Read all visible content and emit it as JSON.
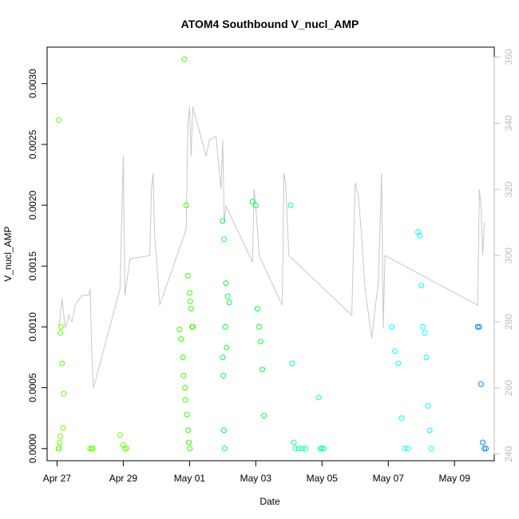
{
  "chart_data": {
    "type": "scatter",
    "title": "ATOM4 Southbound V_nucl_AMP",
    "xlabel": "Date",
    "ylabel": "V_nucl_AMP",
    "x_ticks": [
      "Apr 27",
      "Apr 29",
      "May 01",
      "May 03",
      "May 05",
      "May 07",
      "May 09"
    ],
    "y_ticks": [
      "0.0000",
      "0.0005",
      "0.0010",
      "0.0015",
      "0.0020",
      "0.0025",
      "0.0030"
    ],
    "y_ticks_right": [
      "240",
      "260",
      "280",
      "300",
      "320",
      "340",
      "360"
    ],
    "ylim": [
      -0.0001,
      0.0033
    ],
    "ylim_right": [
      238,
      363
    ],
    "grid": false,
    "legend": "none",
    "x_range_days": [
      -0.3,
      13.2
    ],
    "colors": {
      "line_series": "#c8c8c8",
      "right_axis": "#bdbdbd",
      "points": [
        "#66ff00",
        "#33ff00",
        "#00ff44",
        "#00ffaa",
        "#00ffff",
        "#0088ff"
      ]
    },
    "line_series_right_axis": [
      [
        0.05,
        278
      ],
      [
        0.15,
        287
      ],
      [
        0.25,
        278
      ],
      [
        0.35,
        282
      ],
      [
        0.45,
        280
      ],
      [
        0.55,
        285
      ],
      [
        0.75,
        288
      ],
      [
        0.95,
        288
      ],
      [
        1.0,
        290
      ],
      [
        1.05,
        270
      ],
      [
        1.1,
        260
      ],
      [
        1.9,
        290
      ],
      [
        2.0,
        330
      ],
      [
        2.05,
        288
      ],
      [
        2.2,
        299
      ],
      [
        2.8,
        300
      ],
      [
        2.85,
        320
      ],
      [
        2.9,
        325
      ],
      [
        2.95,
        305
      ],
      [
        3.0,
        300
      ],
      [
        3.1,
        285
      ],
      [
        3.9,
        308
      ],
      [
        3.95,
        340
      ],
      [
        4.0,
        345
      ],
      [
        4.05,
        330
      ],
      [
        4.1,
        345
      ],
      [
        4.5,
        330
      ],
      [
        4.6,
        335
      ],
      [
        4.8,
        336
      ],
      [
        4.95,
        320
      ],
      [
        5.0,
        335
      ],
      [
        5.05,
        310
      ],
      [
        5.1,
        315
      ],
      [
        5.9,
        298
      ],
      [
        5.95,
        320
      ],
      [
        6.0,
        315
      ],
      [
        6.1,
        300
      ],
      [
        6.8,
        285
      ],
      [
        6.85,
        325
      ],
      [
        6.9,
        322
      ],
      [
        7.0,
        300
      ],
      [
        8.9,
        282
      ],
      [
        9.0,
        322
      ],
      [
        9.1,
        318
      ],
      [
        9.2,
        305
      ],
      [
        9.3,
        290
      ],
      [
        9.5,
        275
      ],
      [
        9.7,
        292
      ],
      [
        9.8,
        325
      ],
      [
        9.85,
        278
      ],
      [
        9.9,
        300
      ],
      [
        12.7,
        285
      ],
      [
        12.75,
        320
      ],
      [
        12.8,
        315
      ],
      [
        12.85,
        300
      ],
      [
        12.9,
        310
      ]
    ],
    "series": [
      {
        "x": [
          0.05,
          0.1,
          0.12,
          0.15,
          0.2,
          0.18,
          0.1,
          0.08,
          0.06,
          0.04,
          1.0,
          1.05,
          1.08,
          1.9,
          2.0,
          2.05,
          2.1
        ],
        "y": [
          0.0027,
          0.00095,
          0.001,
          0.0007,
          0.00045,
          0.00017,
          0.0001,
          5e-05,
          0,
          0,
          0,
          0,
          0,
          0.00011,
          3e-05,
          0,
          0
        ],
        "color": "#66ff00"
      },
      {
        "x": [
          3.85,
          3.9,
          3.95,
          4.0,
          4.02,
          4.05,
          4.08,
          4.1,
          3.7,
          3.75,
          3.8,
          3.82,
          3.86,
          3.88,
          3.92,
          3.96,
          3.98,
          4.01
        ],
        "y": [
          0.0032,
          0.002,
          0.00142,
          0.00128,
          0.00121,
          0.00115,
          0.001,
          0.001,
          0.00098,
          0.0009,
          0.00075,
          0.0006,
          0.0005,
          0.0004,
          0.00028,
          0.00015,
          5e-05,
          0
        ],
        "color": "#33ff00"
      },
      {
        "x": [
          5.0,
          5.05,
          5.1,
          5.15,
          5.2,
          5.08,
          5.12,
          5.0,
          5.02,
          5.04,
          5.06,
          5.9,
          6.0,
          6.05,
          6.1,
          6.15,
          6.2,
          6.25
        ],
        "y": [
          0.00187,
          0.00172,
          0.00136,
          0.00125,
          0.0012,
          0.001,
          0.00083,
          0.00075,
          0.0006,
          0.00015,
          0,
          0.00203,
          0.002,
          0.00115,
          0.001,
          0.00088,
          0.00065,
          0.00027
        ],
        "color": "#00ff44"
      },
      {
        "x": [
          7.05,
          7.1,
          7.15,
          7.2,
          7.3,
          7.4,
          7.5,
          7.9,
          7.95,
          8.0,
          8.05
        ],
        "y": [
          0.002,
          0.0007,
          5e-05,
          0,
          0,
          0,
          0,
          0.00042,
          0,
          0,
          0
        ],
        "color": "#00ffaa"
      },
      {
        "x": [
          10.1,
          10.2,
          10.3,
          10.4,
          10.5,
          10.6,
          10.9,
          10.95,
          11.0,
          11.05,
          11.1,
          11.15,
          11.2,
          11.25,
          11.3
        ],
        "y": [
          0.001,
          0.0008,
          0.0007,
          0.00025,
          0,
          0,
          0.00178,
          0.00175,
          0.00134,
          0.001,
          0.00095,
          0.00075,
          0.00035,
          0.00015,
          0
        ],
        "color": "#00ffff"
      },
      {
        "x": [
          12.7,
          12.75,
          12.8,
          12.85,
          12.9,
          12.95
        ],
        "y": [
          0.001,
          0.001,
          0.00053,
          5e-05,
          0,
          0
        ],
        "color": "#0088ff"
      }
    ]
  }
}
